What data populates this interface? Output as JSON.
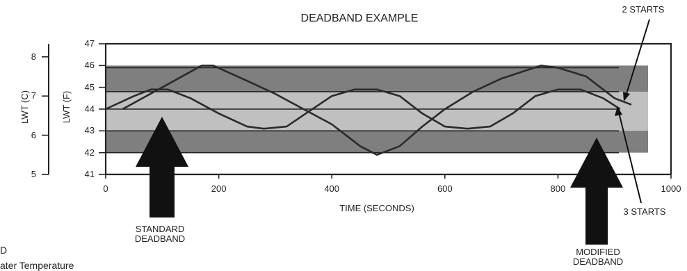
{
  "chart_data": {
    "type": "line",
    "title": "DEADBAND EXAMPLE",
    "xlabel": "TIME (SECONDS)",
    "ylabel": "LWT (F)",
    "ylabel_secondary": "LWT (C)",
    "xlim": [
      0,
      1000
    ],
    "ylim": [
      41,
      47
    ],
    "ylim_secondary": [
      5,
      8.33
    ],
    "x_ticks": [
      "0",
      "200",
      "400",
      "600",
      "800",
      "1000"
    ],
    "y_ticks": [
      "41",
      "42",
      "43",
      "44",
      "45",
      "46",
      "47"
    ],
    "y_ticks_secondary": [
      "5",
      "6",
      "7",
      "8"
    ],
    "bands": [
      {
        "from": 42,
        "to": 46,
        "color": "#7f7f7f"
      },
      {
        "from": 43,
        "to": 44.8,
        "color": "#c0c0c0"
      }
    ],
    "reference_lines": [
      42,
      43,
      44,
      44.8,
      45.9
    ],
    "series": [
      {
        "values": [
          [
            30,
            44
          ],
          [
            100,
            45
          ],
          [
            170,
            46
          ],
          [
            190,
            46
          ],
          [
            250,
            45.3
          ],
          [
            300,
            44.7
          ],
          [
            350,
            44
          ],
          [
            400,
            43.3
          ],
          [
            450,
            42.3
          ],
          [
            480,
            41.9
          ],
          [
            520,
            42.3
          ],
          [
            560,
            43.2
          ],
          [
            600,
            44
          ],
          [
            650,
            44.8
          ],
          [
            700,
            45.4
          ],
          [
            770,
            46
          ],
          [
            800,
            45.9
          ],
          [
            850,
            45.5
          ],
          [
            900,
            44.5
          ],
          [
            930,
            44.2
          ]
        ]
      },
      {
        "values": [
          [
            0,
            44
          ],
          [
            50,
            44.6
          ],
          [
            80,
            44.9
          ],
          [
            110,
            44.9
          ],
          [
            150,
            44.5
          ],
          [
            200,
            43.8
          ],
          [
            250,
            43.2
          ],
          [
            280,
            43.1
          ],
          [
            320,
            43.2
          ],
          [
            360,
            43.9
          ],
          [
            400,
            44.6
          ],
          [
            440,
            44.9
          ],
          [
            480,
            44.9
          ],
          [
            520,
            44.6
          ],
          [
            560,
            43.8
          ],
          [
            600,
            43.2
          ],
          [
            640,
            43.1
          ],
          [
            680,
            43.2
          ],
          [
            720,
            43.8
          ],
          [
            760,
            44.6
          ],
          [
            800,
            44.9
          ],
          [
            840,
            44.9
          ],
          [
            880,
            44.5
          ],
          [
            910,
            44
          ]
        ]
      }
    ],
    "annotations": [
      {
        "text_lines": [
          "STANDARD",
          "DEADBAND"
        ]
      },
      {
        "text_lines": [
          "MODIFIED",
          "DEADBAND"
        ]
      },
      {
        "text": "2 STARTS"
      },
      {
        "text": "3 STARTS"
      }
    ]
  },
  "legend_partial": {
    "line1": "D",
    "line2": "ater Temperature"
  }
}
